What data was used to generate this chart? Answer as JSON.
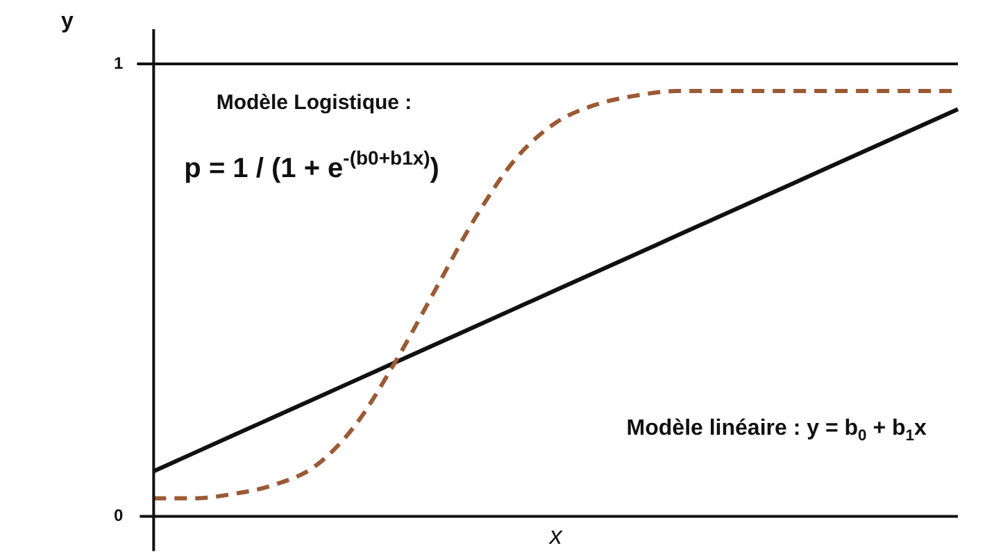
{
  "chart_data": {
    "type": "line",
    "xlabel": "x",
    "ylabel": "y",
    "categories": [
      null,
      null,
      null,
      null,
      null,
      null,
      null,
      null,
      null,
      null,
      null,
      null,
      null,
      null,
      null,
      null,
      null,
      null,
      null,
      null,
      null
    ],
    "series": [
      {
        "color": "#9b5a34",
        "line_style": "dashed",
        "values": [
          0.04,
          0.04,
          0.05,
          0.07,
          0.11,
          0.2,
          0.34,
          0.5,
          0.66,
          0.79,
          0.87,
          0.91,
          0.93,
          0.94,
          0.94,
          0.94,
          0.94,
          0.94,
          0.94,
          0.94,
          0.94
        ]
      },
      {
        "color": "#111111",
        "line_style": "solid",
        "values": [
          0.1,
          0.14,
          0.18,
          0.22,
          0.26,
          0.3,
          0.34,
          0.38,
          0.42,
          0.46,
          0.5,
          0.54,
          0.58,
          0.62,
          0.66,
          0.7,
          0.74,
          0.78,
          0.82,
          0.86,
          0.9
        ]
      }
    ],
    "ylim": [
      0,
      1
    ],
    "yticks": [
      0,
      1
    ],
    "grid": false,
    "legend": false,
    "marker": "none",
    "ref_lines": [
      {
        "axis": "y",
        "value": 1,
        "color": "#111111"
      }
    ],
    "annotations": [
      "Modèle Logistique :",
      "p = 1 / (1 + e$^{-(b0+b1x)}$)",
      "Modèle linéaire : y = b$_{0}$ + b$_{1}$x"
    ]
  }
}
